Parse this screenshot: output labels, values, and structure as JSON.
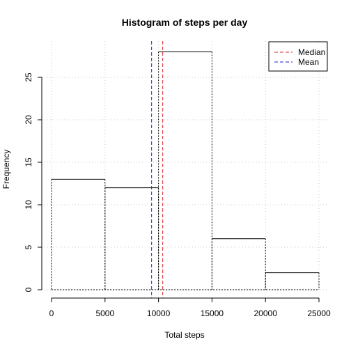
{
  "chart_data": {
    "type": "bar",
    "title": "Histogram of steps per day",
    "xlabel": "Total steps",
    "ylabel": "Frequency",
    "bins": [
      {
        "start": 0,
        "end": 5000,
        "count": 13
      },
      {
        "start": 5000,
        "end": 10000,
        "count": 12
      },
      {
        "start": 10000,
        "end": 15000,
        "count": 28
      },
      {
        "start": 15000,
        "end": 20000,
        "count": 6
      },
      {
        "start": 20000,
        "end": 25000,
        "count": 2
      }
    ],
    "xlim": [
      0,
      25000
    ],
    "ylim": [
      0,
      28
    ],
    "x_ticks": [
      0,
      5000,
      10000,
      15000,
      20000,
      25000
    ],
    "y_ticks": [
      0,
      5,
      10,
      15,
      20,
      25
    ],
    "grid": true,
    "reference_lines": [
      {
        "name": "Median",
        "x": 10395,
        "color": "#d62728"
      },
      {
        "name": "Mean",
        "x": 9354,
        "color": "#1f1fd0"
      }
    ],
    "legend": {
      "position": "top-right",
      "entries": [
        "Median",
        "Mean"
      ]
    }
  }
}
